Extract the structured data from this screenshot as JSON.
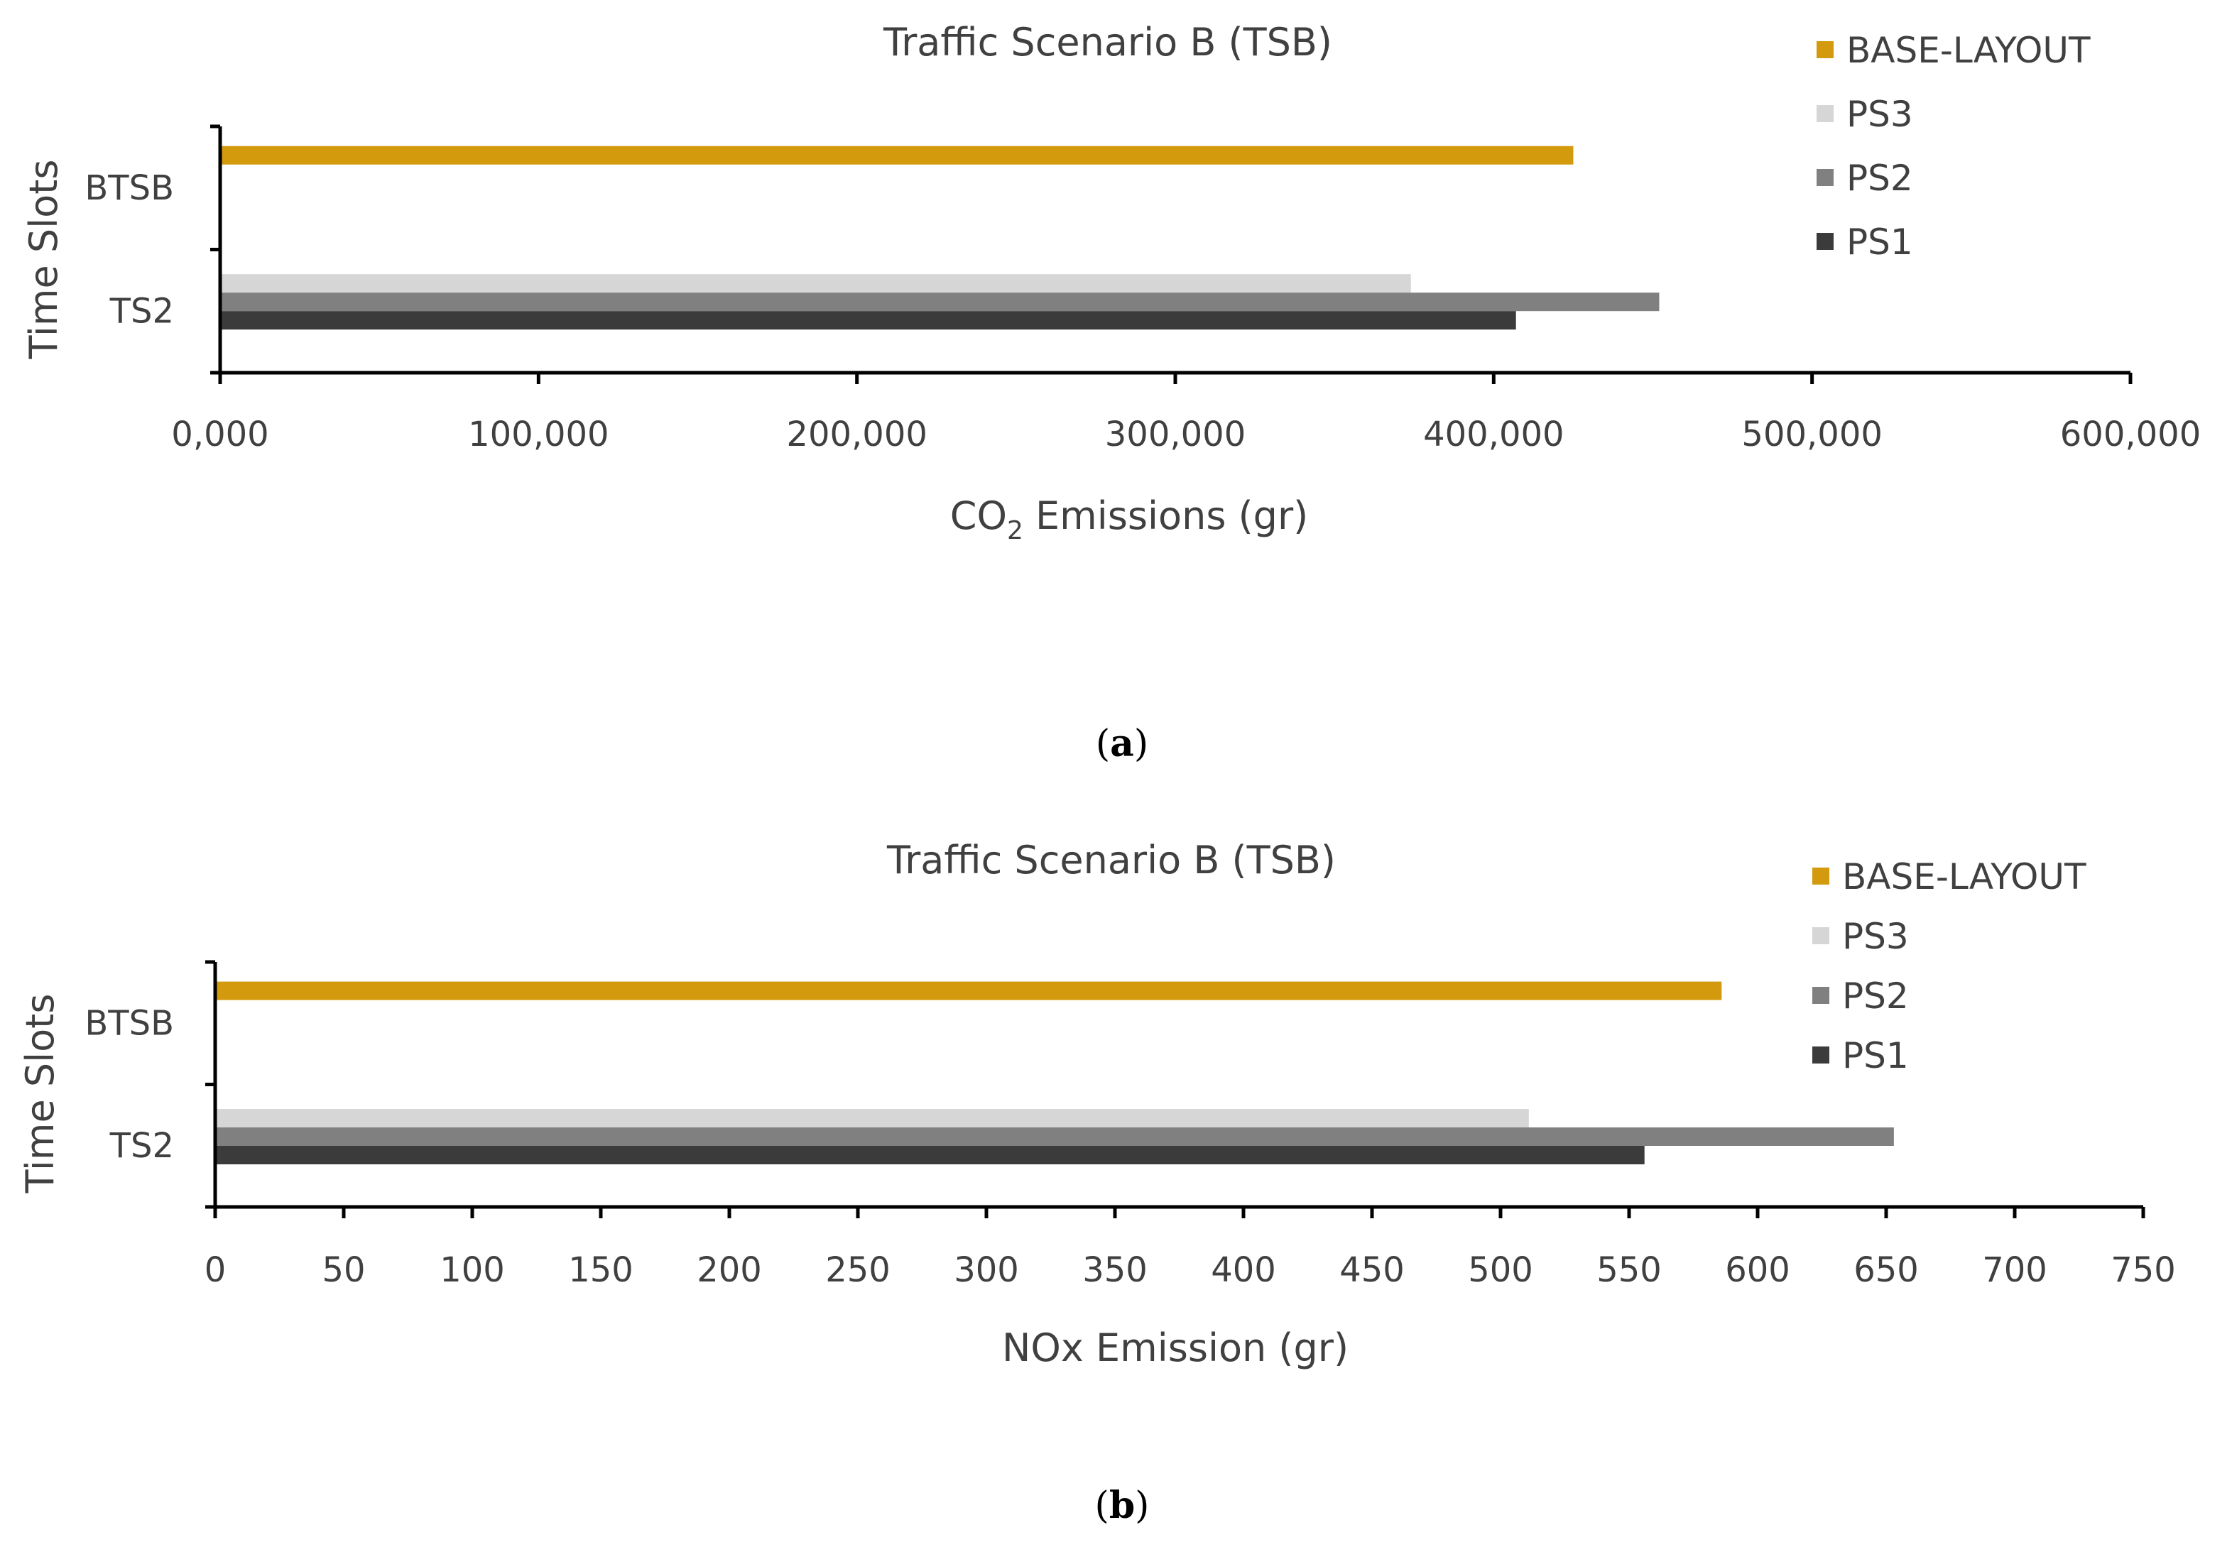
{
  "chart_data": [
    {
      "type": "bar",
      "orientation": "horizontal",
      "title": "Traffic Scenario B (TSB)",
      "xlabel": "CO2 Emissions (gr)",
      "ylabel": "Time Slots",
      "xlim": [
        0,
        600000
      ],
      "x_tick_values": [
        0,
        100000,
        200000,
        300000,
        400000,
        500000,
        600000
      ],
      "x_tick_labels": [
        "0,000",
        "100,000",
        "200,000",
        "300,000",
        "400,000",
        "500,000",
        "600,000"
      ],
      "categories": [
        "TS2",
        "BTSB"
      ],
      "series": [
        {
          "name": "PS1",
          "color": "#3b3b3b",
          "values": [
            407000,
            null
          ]
        },
        {
          "name": "PS2",
          "color": "#808080",
          "values": [
            452000,
            null
          ]
        },
        {
          "name": "PS3",
          "color": "#d6d6d6",
          "values": [
            374000,
            null
          ]
        },
        {
          "name": "BASE-LAYOUT",
          "color": "#d39a0e",
          "values": [
            null,
            425000
          ]
        }
      ],
      "legend_order": [
        "BASE-LAYOUT",
        "PS3",
        "PS2",
        "PS1"
      ],
      "legend_position": "top-right",
      "caption_label": "a"
    },
    {
      "type": "bar",
      "orientation": "horizontal",
      "title": "Traffic Scenario B (TSB)",
      "xlabel": "NOx Emission (gr)",
      "ylabel": "Time Slots",
      "xlim": [
        0,
        750
      ],
      "x_tick_values": [
        0,
        50,
        100,
        150,
        200,
        250,
        300,
        350,
        400,
        450,
        500,
        550,
        600,
        650,
        700,
        750
      ],
      "x_tick_labels": [
        "0",
        "50",
        "100",
        "150",
        "200",
        "250",
        "300",
        "350",
        "400",
        "450",
        "500",
        "550",
        "600",
        "650",
        "700",
        "750"
      ],
      "categories": [
        "TS2",
        "BTSB"
      ],
      "series": [
        {
          "name": "PS1",
          "color": "#3b3b3b",
          "values": [
            556,
            null
          ]
        },
        {
          "name": "PS2",
          "color": "#808080",
          "values": [
            653,
            null
          ]
        },
        {
          "name": "PS3",
          "color": "#d6d6d6",
          "values": [
            511,
            null
          ]
        },
        {
          "name": "BASE-LAYOUT",
          "color": "#d39a0e",
          "values": [
            null,
            586
          ]
        }
      ],
      "legend_order": [
        "BASE-LAYOUT",
        "PS3",
        "PS2",
        "PS1"
      ],
      "legend_position": "top-right",
      "caption_label": "b"
    }
  ]
}
